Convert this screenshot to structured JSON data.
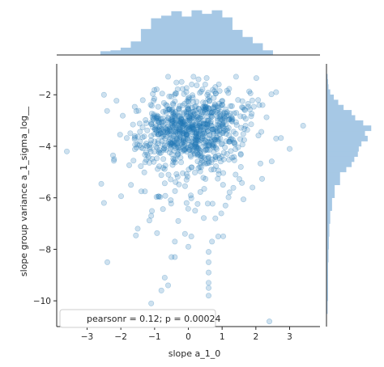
{
  "chart_data": {
    "type": "scatter",
    "xlabel": "slope a_1_0",
    "ylabel": "slope group variance a_1_sigma_log__",
    "xlim": [
      -3.9,
      3.9
    ],
    "ylim": [
      -11.0,
      -0.8
    ],
    "xticks": [
      -3,
      -2,
      -1,
      0,
      1,
      2,
      3
    ],
    "yticks": [
      -2,
      -4,
      -6,
      -8,
      -10
    ],
    "legend_text": "pearsonr = 0.12; p = 0.00024",
    "legend_placement": "lower-left",
    "grid": false,
    "marker_color": "#1f77b4",
    "marker_alpha": 0.22,
    "n_points_approx": 900,
    "marginal_x_hist": {
      "bin_edges": [
        -2.6,
        -2.3,
        -2.0,
        -1.7,
        -1.4,
        -1.1,
        -0.8,
        -0.5,
        -0.2,
        0.1,
        0.4,
        0.7,
        1.0,
        1.3,
        1.6,
        1.9,
        2.2,
        2.5
      ],
      "heights": [
        0.08,
        0.1,
        0.16,
        0.3,
        0.58,
        0.82,
        0.88,
        0.98,
        0.86,
        1.0,
        0.92,
        1.0,
        0.84,
        0.56,
        0.4,
        0.26,
        0.1
      ]
    },
    "marginal_y_hist": {
      "bin_edges": [
        -10.5,
        -10.0,
        -9.5,
        -9.0,
        -8.5,
        -8.0,
        -7.5,
        -7.0,
        -6.5,
        -6.0,
        -5.5,
        -5.0,
        -4.8,
        -4.6,
        -4.4,
        -4.2,
        -4.0,
        -3.8,
        -3.6,
        -3.4,
        -3.2,
        -3.0,
        -2.8,
        -2.6,
        -2.4,
        -2.2,
        -2.0,
        -1.8,
        -1.6,
        -1.4,
        -1.2
      ],
      "heights": [
        0.02,
        0.03,
        0.03,
        0.03,
        0.04,
        0.05,
        0.06,
        0.08,
        0.12,
        0.18,
        0.3,
        0.44,
        0.56,
        0.62,
        0.7,
        0.72,
        0.78,
        0.92,
        0.86,
        1.0,
        0.82,
        0.64,
        0.56,
        0.38,
        0.26,
        0.16,
        0.08,
        0.04,
        0.03,
        0.02
      ]
    },
    "points": [
      [
        -3.6,
        -4.2
      ],
      [
        -2.5,
        -6.2
      ],
      [
        -2.4,
        -8.5
      ],
      [
        -2.5,
        -2.0
      ],
      [
        3.4,
        -3.2
      ],
      [
        2.6,
        -1.9
      ],
      [
        2.4,
        -10.8
      ],
      [
        -1.1,
        -10.1
      ],
      [
        -0.8,
        -9.6
      ],
      [
        -0.6,
        -9.4
      ],
      [
        -0.7,
        -9.1
      ],
      [
        -0.4,
        -8.3
      ],
      [
        -0.5,
        -8.3
      ],
      [
        -0.4,
        -7.7
      ],
      [
        0.6,
        -9.8
      ],
      [
        0.6,
        -9.5
      ],
      [
        0.6,
        -9.3
      ],
      [
        0.6,
        -8.9
      ],
      [
        0.6,
        -8.5
      ],
      [
        0.6,
        -8.1
      ],
      [
        0.7,
        -7.7
      ],
      [
        -1.5,
        -7.2
      ],
      [
        -0.1,
        -7.4
      ],
      [
        0.0,
        -7.9
      ],
      [
        0.8,
        -6.8
      ],
      [
        1.1,
        -6.3
      ],
      [
        1.4,
        -5.1
      ],
      [
        -0.6,
        -1.3
      ],
      [
        -0.2,
        -1.5
      ],
      [
        0.1,
        -1.6
      ],
      [
        0.3,
        -1.4
      ],
      [
        0.5,
        -1.6
      ],
      [
        0.8,
        -1.7
      ],
      [
        3.0,
        -4.1
      ],
      [
        2.6,
        -3.7
      ],
      [
        -1.1,
        -6.7
      ],
      [
        -0.3,
        -6.9
      ],
      [
        0.2,
        -6.5
      ],
      [
        -1.7,
        -5.5
      ],
      [
        1.9,
        -5.6
      ],
      [
        2.1,
        -2.4
      ],
      [
        -2.2,
        -4.5
      ]
    ]
  }
}
